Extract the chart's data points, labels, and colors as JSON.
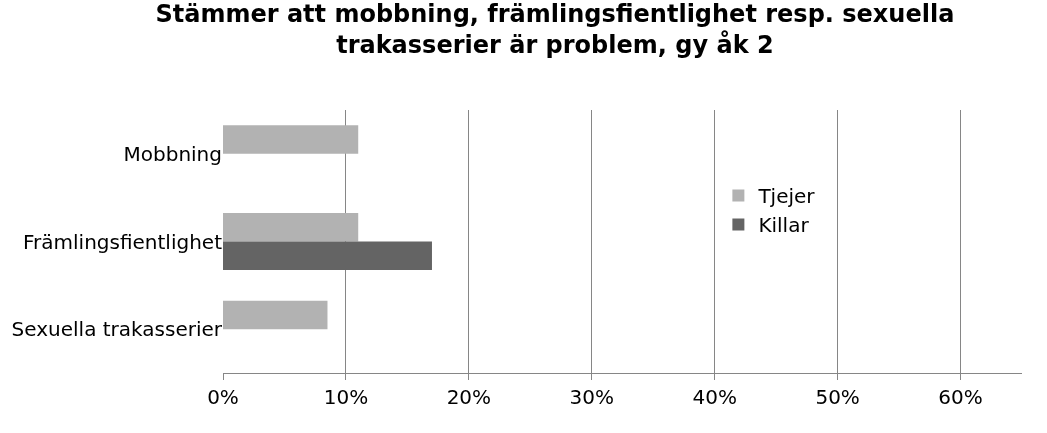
{
  "chart_data": {
    "type": "bar",
    "orientation": "horizontal",
    "title": "Stämmer att mobbning, främlingsfientlighet resp. sexuella trakasserier är problem, gy åk 2",
    "categories": [
      "Mobbning",
      "Främlingsfientlighet",
      "Sexuella trakasserier"
    ],
    "series": [
      {
        "name": "Tjejer",
        "color": "#b2b2b2",
        "values": [
          11,
          11,
          8.5
        ]
      },
      {
        "name": "Killar",
        "color": "#646464",
        "values": [
          null,
          17,
          null
        ]
      }
    ],
    "xlim": [
      0,
      65
    ],
    "xticks": [
      {
        "value": 0,
        "label": "0%"
      },
      {
        "value": 10,
        "label": "10%"
      },
      {
        "value": 20,
        "label": "20%"
      },
      {
        "value": 30,
        "label": "30%"
      },
      {
        "value": 40,
        "label": "40%"
      },
      {
        "value": 50,
        "label": "50%"
      },
      {
        "value": 60,
        "label": "60%"
      }
    ],
    "grid": "x",
    "legend": "right"
  }
}
